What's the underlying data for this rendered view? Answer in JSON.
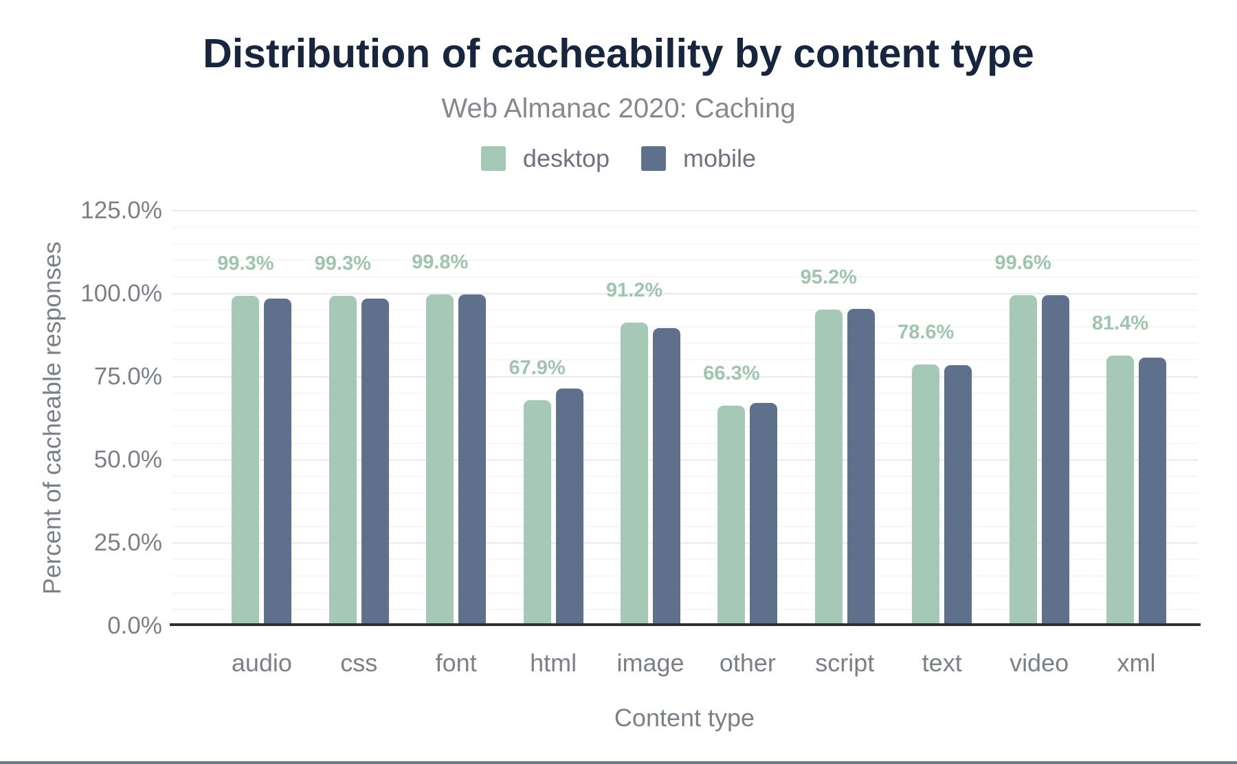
{
  "title": "Distribution of cacheability by content type",
  "subtitle": "Web Almanac 2020: Caching",
  "legend": [
    {
      "label": "desktop",
      "color": "#a6c8b6"
    },
    {
      "label": "mobile",
      "color": "#5f708c"
    }
  ],
  "y_axis": {
    "title": "Percent of cacheable responses",
    "tick_values": [
      0,
      25,
      50,
      75,
      100,
      125
    ],
    "tick_labels": [
      "0.0%",
      "25.0%",
      "50.0%",
      "75.0%",
      "100.0%",
      "125.0%"
    ]
  },
  "x_axis": {
    "title": "Content type"
  },
  "colors": {
    "desktop_bar": "#a6c8b6",
    "mobile_bar": "#5f708c",
    "value_label": "#9fc4b0",
    "title_text": "#17263e",
    "axis_text": "#7b8086",
    "gridline_minor": "#f6f6f6",
    "gridline_major": "#eaeaea",
    "axis_line": "#2e2e2e"
  },
  "chart_data": {
    "type": "bar",
    "title": "Distribution of cacheability by content type",
    "subtitle": "Web Almanac 2020: Caching",
    "xlabel": "Content type",
    "ylabel": "Percent of cacheable responses",
    "ylim": [
      0,
      125
    ],
    "tick_interval": 25,
    "minor_gridline_interval": 5,
    "grid": true,
    "legend_position": "top",
    "categories": [
      "audio",
      "css",
      "font",
      "html",
      "image",
      "other",
      "script",
      "text",
      "video",
      "xml"
    ],
    "series": [
      {
        "name": "desktop",
        "color": "#a6c8b6",
        "values": [
          99.3,
          99.3,
          99.8,
          67.9,
          91.2,
          66.3,
          95.2,
          78.6,
          99.6,
          81.4
        ],
        "data_labels": [
          "99.3%",
          "99.3%",
          "99.8%",
          "67.9%",
          "91.2%",
          "66.3%",
          "95.2%",
          "78.6%",
          "99.6%",
          "81.4%"
        ]
      },
      {
        "name": "mobile",
        "color": "#5f708c",
        "values": [
          98.5,
          98.5,
          99.8,
          71.4,
          89.6,
          67.1,
          95.3,
          78.4,
          99.5,
          80.7
        ],
        "data_labels": []
      }
    ],
    "data_labels_shown_for": "desktop"
  }
}
